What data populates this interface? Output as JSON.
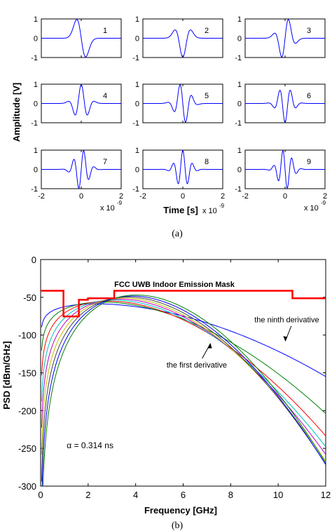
{
  "chart_data": [
    {
      "type": "line",
      "caption": "(a)",
      "ylabel": "Amplitude [V]",
      "xlabel": "Time [s]",
      "x_exponent": "x 10",
      "x_exponent_power": "-9",
      "xlim": [
        -2,
        2
      ],
      "ylim": [
        -1,
        1
      ],
      "xticks": [
        "-2",
        "0",
        "2"
      ],
      "yticks": [
        "1",
        "0",
        "-1"
      ],
      "pulse_width_ns": 0.314,
      "panels": [
        {
          "name": "1",
          "derivative": 1
        },
        {
          "name": "2",
          "derivative": 2
        },
        {
          "name": "3",
          "derivative": 3
        },
        {
          "name": "4",
          "derivative": 4
        },
        {
          "name": "5",
          "derivative": 5
        },
        {
          "name": "6",
          "derivative": 6
        },
        {
          "name": "7",
          "derivative": 7
        },
        {
          "name": "8",
          "derivative": 8
        },
        {
          "name": "9",
          "derivative": 9
        }
      ],
      "line_color": "#0000ff"
    },
    {
      "type": "line",
      "caption": "(b)",
      "xlabel": "Frequency  [GHz]",
      "ylabel": "PSD [dBm/GHz]",
      "xlim": [
        0,
        12
      ],
      "ylim": [
        -300,
        0
      ],
      "xticks": [
        "0",
        "2",
        "4",
        "6",
        "8",
        "10",
        "12"
      ],
      "yticks": [
        "0",
        "-50",
        "-100",
        "-150",
        "-200",
        "-250",
        "-300"
      ],
      "mask_label": "FCC UWB Indoor Emission Mask",
      "mask": {
        "color": "#ff0000",
        "x": [
          0,
          0.96,
          0.96,
          1.61,
          1.61,
          1.99,
          1.99,
          3.1,
          3.1,
          10.6,
          10.6,
          12
        ],
        "y": [
          -41.3,
          -41.3,
          -75.3,
          -75.3,
          -53.3,
          -53.3,
          -51.3,
          -51.3,
          -41.3,
          -41.3,
          -51.3,
          -51.3
        ]
      },
      "annotations": {
        "ninth": "the ninth derivative",
        "first": "the first derivative",
        "alpha": "α = 0.314 ns"
      },
      "series": [
        {
          "derivative": 1,
          "color": "#0000ff",
          "peak_f": 3.3,
          "peak_db": -60
        },
        {
          "derivative": 2,
          "color": "#008000",
          "peak_f": 3.7,
          "peak_db": -59
        },
        {
          "derivative": 3,
          "color": "#ff0000",
          "peak_f": 4.05,
          "peak_db": -59
        },
        {
          "derivative": 4,
          "color": "#00bfbf",
          "peak_f": 4.4,
          "peak_db": -59
        },
        {
          "derivative": 5,
          "color": "#bf00bf",
          "peak_f": 4.7,
          "peak_db": -59
        },
        {
          "derivative": 6,
          "color": "#bfbf00",
          "peak_f": 4.95,
          "peak_db": -59
        },
        {
          "derivative": 7,
          "color": "#404040",
          "peak_f": 5.2,
          "peak_db": -59
        },
        {
          "derivative": 8,
          "color": "#0000ff",
          "peak_f": 5.45,
          "peak_db": -59
        },
        {
          "derivative": 9,
          "color": "#008000",
          "peak_f": 5.7,
          "peak_db": -59
        }
      ]
    }
  ]
}
